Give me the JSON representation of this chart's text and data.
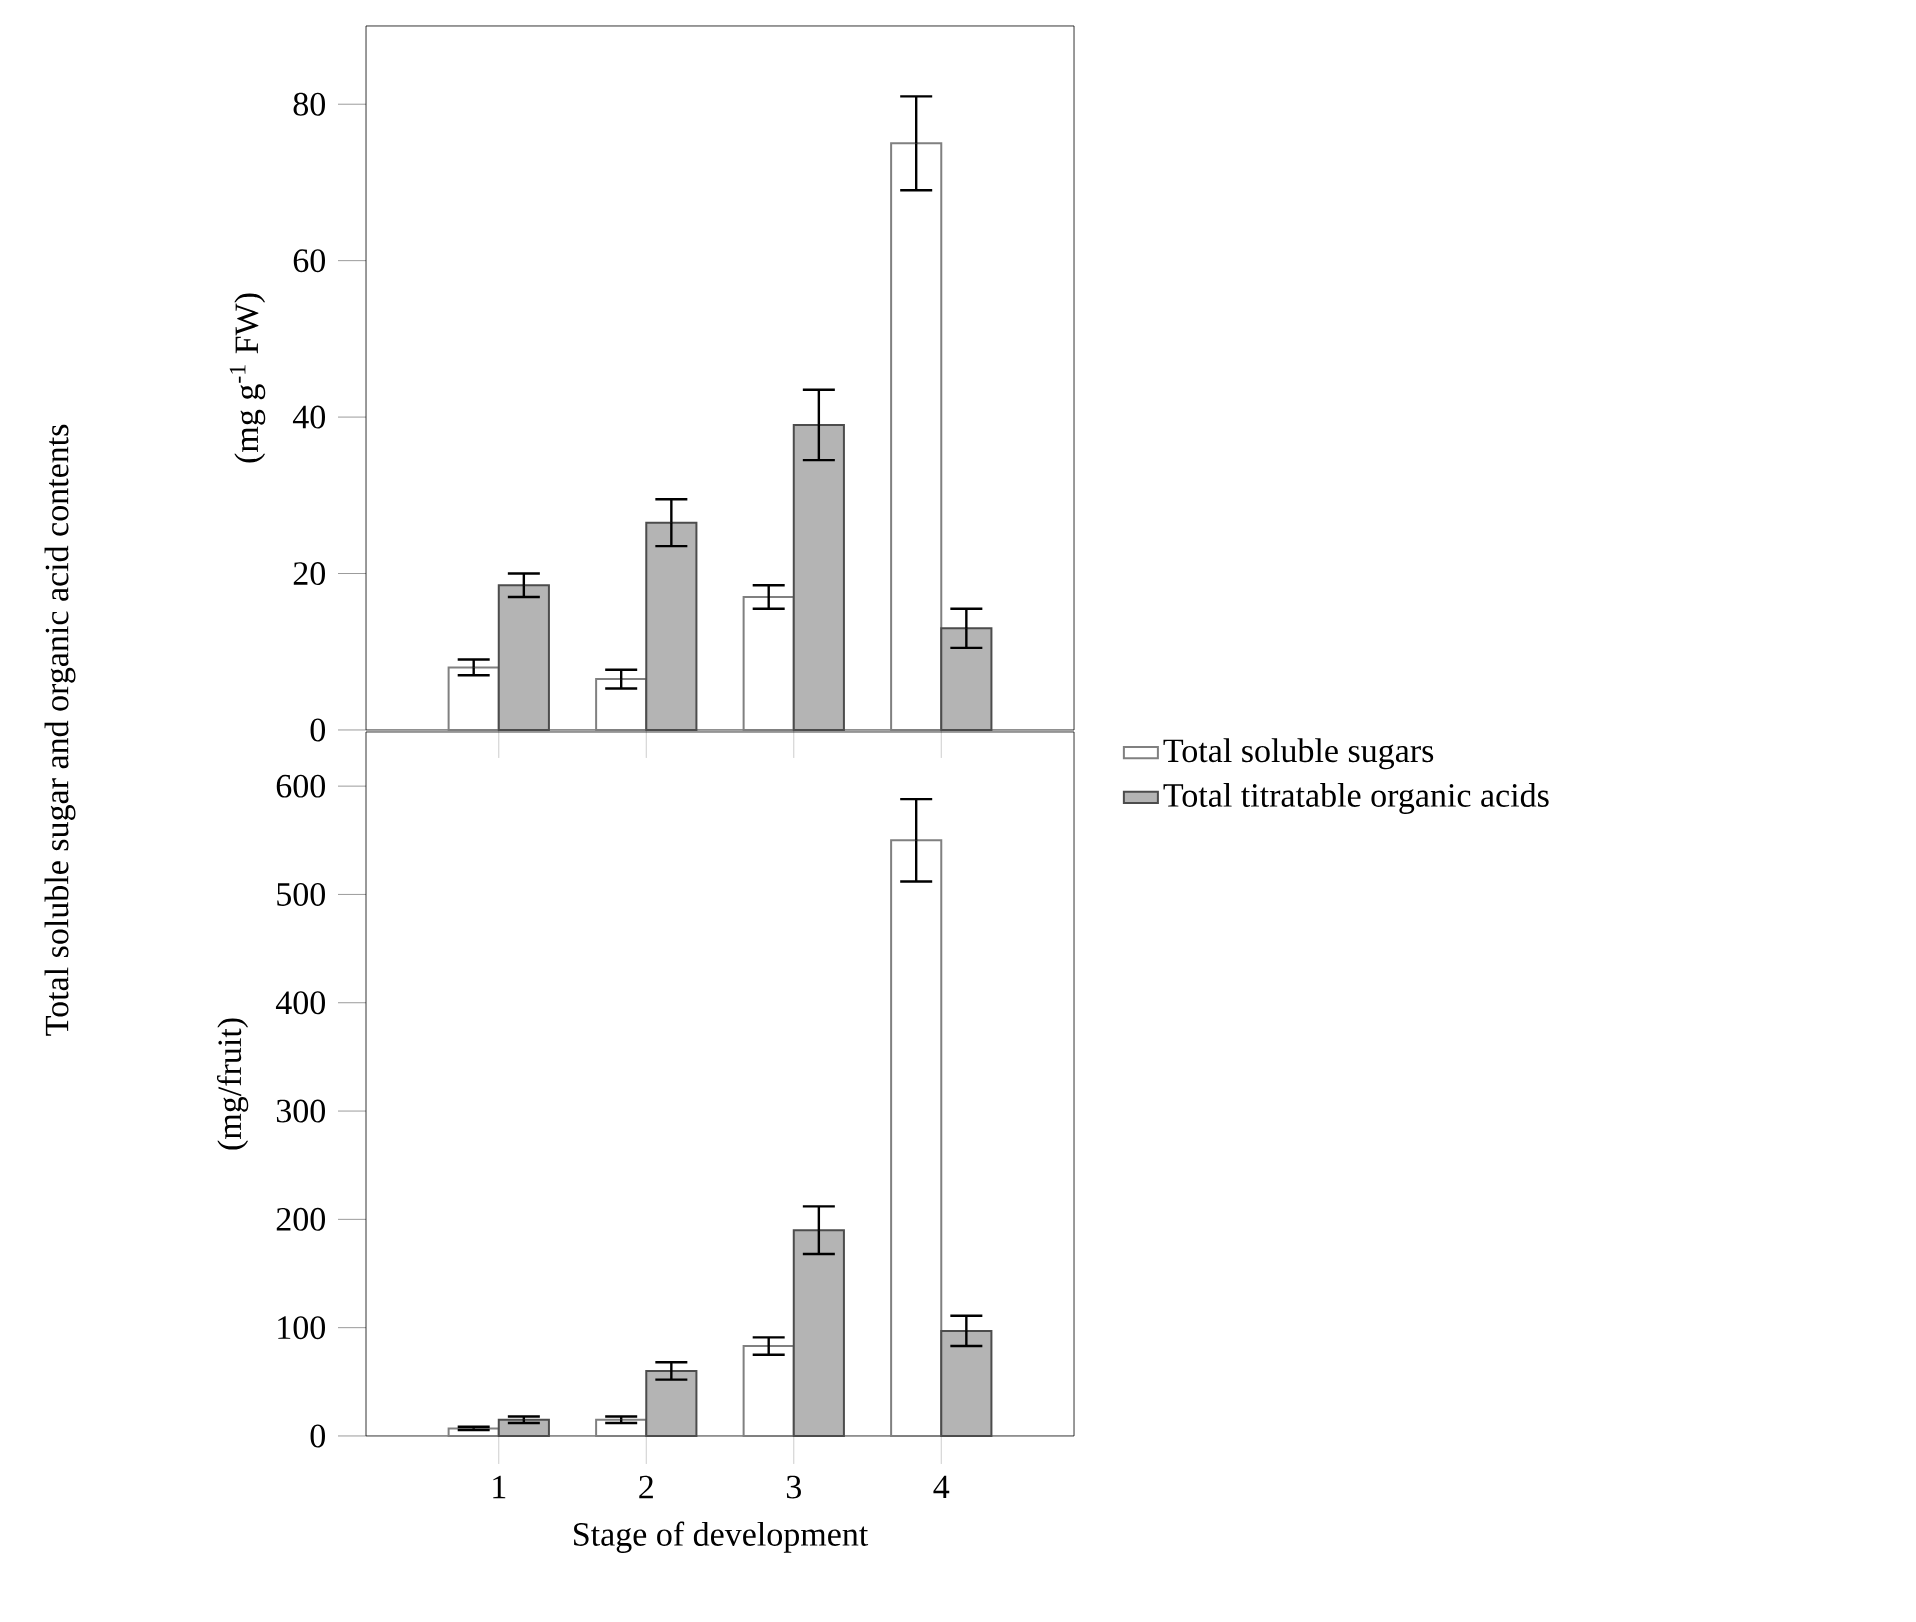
{
  "chart_data": [
    {
      "type": "bar",
      "ylabel": "(mg g$^{-1}$ FW)",
      "annotations": [
        "Total soluble sugar and organic acid contents"
      ],
      "categories": [
        "1",
        "2",
        "3",
        "4"
      ],
      "tick_labels": "y",
      "ylim": [
        0,
        90
      ],
      "yticks": [
        0,
        20,
        40,
        60,
        80
      ],
      "legend": "right",
      "series": [
        {
          "name": "Total soluble sugars",
          "color": "#ffffff",
          "values": [
            8,
            6.5,
            17,
            75
          ],
          "errors": [
            1,
            1.2,
            1.5,
            6
          ]
        },
        {
          "name": "Total titratable organic acids",
          "color": "#b4b4b4",
          "values": [
            18.5,
            26.5,
            39,
            13
          ],
          "errors": [
            1.5,
            3,
            4.5,
            2.5
          ]
        }
      ]
    },
    {
      "type": "bar",
      "xlabel": "Stage of development",
      "ylabel": "(mg/fruit)",
      "categories": [
        "1",
        "2",
        "3",
        "4"
      ],
      "ylim": [
        0,
        650
      ],
      "yticks": [
        0,
        100,
        200,
        300,
        400,
        500,
        600
      ],
      "series": [
        {
          "color": "#ffffff",
          "values": [
            7,
            15,
            83,
            550
          ],
          "errors": [
            1.5,
            3,
            8,
            38
          ]
        },
        {
          "color": "#b4b4b4",
          "values": [
            15,
            60,
            190,
            97
          ],
          "errors": [
            3,
            8,
            22,
            14
          ]
        }
      ]
    }
  ]
}
